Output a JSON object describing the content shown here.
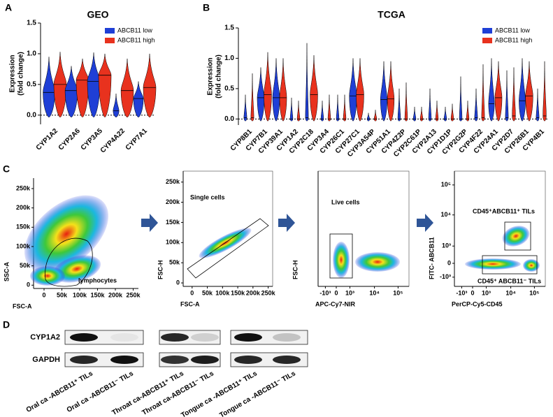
{
  "chart_data": [
    {
      "type": "violin",
      "panel_label": "A",
      "title": "GEO",
      "y_label": [
        "Expression",
        "(fold change)"
      ],
      "categories": [
        "CYP1A2",
        "CYP2A6",
        "CYP3A5",
        "CYP4A22",
        "CYP7A1"
      ],
      "category_colors": [
        "#e8231c",
        "#000000",
        "#000000",
        "#000000",
        "#000000"
      ],
      "series": [
        {
          "name": "ABCB11 low",
          "color": "#1f3fd6",
          "values": [
            0.37,
            0.4,
            0.55,
            0.07,
            0.27
          ],
          "max": [
            0.95,
            0.8,
            1.02,
            0.35,
            0.55
          ]
        },
        {
          "name": "ABCB11 high",
          "color": "#e8321e",
          "values": [
            0.5,
            0.57,
            0.65,
            0.4,
            0.45
          ],
          "max": [
            1.03,
            0.92,
            1.0,
            0.92,
            1.0
          ]
        }
      ],
      "ylim": [
        -0.15,
        1.5
      ],
      "yticks": [
        {
          "value": 0,
          "label": "0.0"
        },
        {
          "value": 0.5,
          "label": "0.5"
        },
        {
          "value": 1,
          "label": "1.0"
        },
        {
          "value": 1.5,
          "label": "1.5"
        }
      ],
      "zero_line": true,
      "legend": "upper right"
    },
    {
      "type": "violin",
      "panel_label": "B",
      "title": "TCGA",
      "y_label": [
        "Expression",
        "(fold change)"
      ],
      "categories": [
        "CYP8B1",
        "CYP7B1",
        "CYP39A1",
        "CYP1A2",
        "CYP2C18",
        "CYP3A4",
        "CYP26C1",
        "CYP27C1",
        "CYP3A54P",
        "CYP51A1",
        "CYP4Z2P",
        "CYP2C61P",
        "CYP2A13",
        "CYP1D1P",
        "CYP2G2P",
        "CYP4F22",
        "CYP24A1",
        "CYP2D7",
        "CYP26B1",
        "CYP4B1"
      ],
      "category_colors": [
        "#000000",
        "#000000",
        "#000000",
        "#e8231c",
        "#000000",
        "#000000",
        "#000000",
        "#000000",
        "#000000",
        "#000000",
        "#000000",
        "#000000",
        "#000000",
        "#000000",
        "#000000",
        "#000000",
        "#000000",
        "#000000",
        "#000000",
        "#000000"
      ],
      "series": [
        {
          "name": "ABCB11 low",
          "color": "#1f3fd6",
          "values": [
            0.02,
            0.35,
            0.35,
            0,
            0.02,
            0,
            0,
            0.38,
            0,
            0.32,
            0,
            0,
            0,
            0,
            0,
            0.02,
            0.25,
            0.02,
            0.3,
            0.02
          ],
          "max": [
            0.4,
            0.85,
            1.0,
            0.35,
            1.25,
            0.3,
            0.4,
            1.0,
            0.1,
            0.95,
            0.5,
            0.2,
            0.5,
            0.2,
            0.7,
            0.5,
            1.0,
            0.8,
            1.0,
            0.5
          ]
        },
        {
          "name": "ABCB11 high",
          "color": "#e8321e",
          "values": [
            0.02,
            0.4,
            0.35,
            0,
            0.4,
            0,
            0,
            0.4,
            0,
            0.33,
            0,
            0,
            0,
            0,
            0,
            0.02,
            0.35,
            0.05,
            0.38,
            0.05
          ],
          "max": [
            0.75,
            1.1,
            1.0,
            0.3,
            1.05,
            0.4,
            0.4,
            1.0,
            0.15,
            0.95,
            0.6,
            0.2,
            0.3,
            0.25,
            0.3,
            0.9,
            0.95,
            0.85,
            0.95,
            0.95
          ]
        }
      ],
      "ylim": [
        -0.1,
        1.5
      ],
      "yticks": [
        {
          "value": 0,
          "label": "0.0"
        },
        {
          "value": 0.5,
          "label": "0.5"
        },
        {
          "value": 1,
          "label": "1.0"
        },
        {
          "value": 1.5,
          "label": "1.5"
        }
      ],
      "zero_line": true,
      "legend": "upper right"
    }
  ],
  "flow_cytometry": {
    "panel_label": "C",
    "plots": [
      {
        "x_label": "FSC-A",
        "y_label": "SSC-A",
        "x_ticks": [
          "0",
          "50k",
          "100k",
          "150k",
          "200k",
          "250k"
        ],
        "y_ticks": [
          "0",
          "50k",
          "100k",
          "150k",
          "200k",
          "250k"
        ],
        "gates": [
          "lymphocytes"
        ]
      },
      {
        "x_label": "FSC-A",
        "y_label": "FSC-H",
        "x_ticks": [
          "0",
          "50k",
          "100k",
          "150k",
          "200k",
          "250k"
        ],
        "y_ticks": [
          "0",
          "50k",
          "100k",
          "150k",
          "200k",
          "250k"
        ],
        "gates": [
          "Single cells"
        ]
      },
      {
        "x_label": "APC-Cy7-NIR",
        "y_label": "FSC-H",
        "x_ticks": [
          "-10³",
          "0",
          "10³",
          "10⁴",
          "10⁵"
        ],
        "gates": [
          "Live cells"
        ]
      },
      {
        "x_label": "PerCP-Cy5-CD45",
        "y_label": "FITC- ABCB11",
        "x_ticks": [
          "-10³",
          "0",
          "10³",
          "10⁴",
          "10⁵"
        ],
        "y_ticks": [
          "-10³",
          "0",
          "10³",
          "10⁴",
          "10⁵"
        ],
        "gates": [
          "CD45⁺ABCB11⁺ TILs",
          "CD45⁺ ABCB11⁻ TILs"
        ]
      }
    ]
  },
  "western_blot": {
    "panel_label": "D",
    "proteins": [
      "CYP1A2",
      "GAPDH"
    ],
    "lanes": [
      "Oral ca -ABCB11⁺ TILs",
      "Oral ca -ABCB11⁻ TILs",
      "Throat ca-ABCB11⁺ TILs",
      "Throat ca-ABCB11⁻ TILs",
      "Tongue ca -ABCB11⁺ TILs",
      "Tongue ca -ABCB11⁻ TILs"
    ]
  }
}
